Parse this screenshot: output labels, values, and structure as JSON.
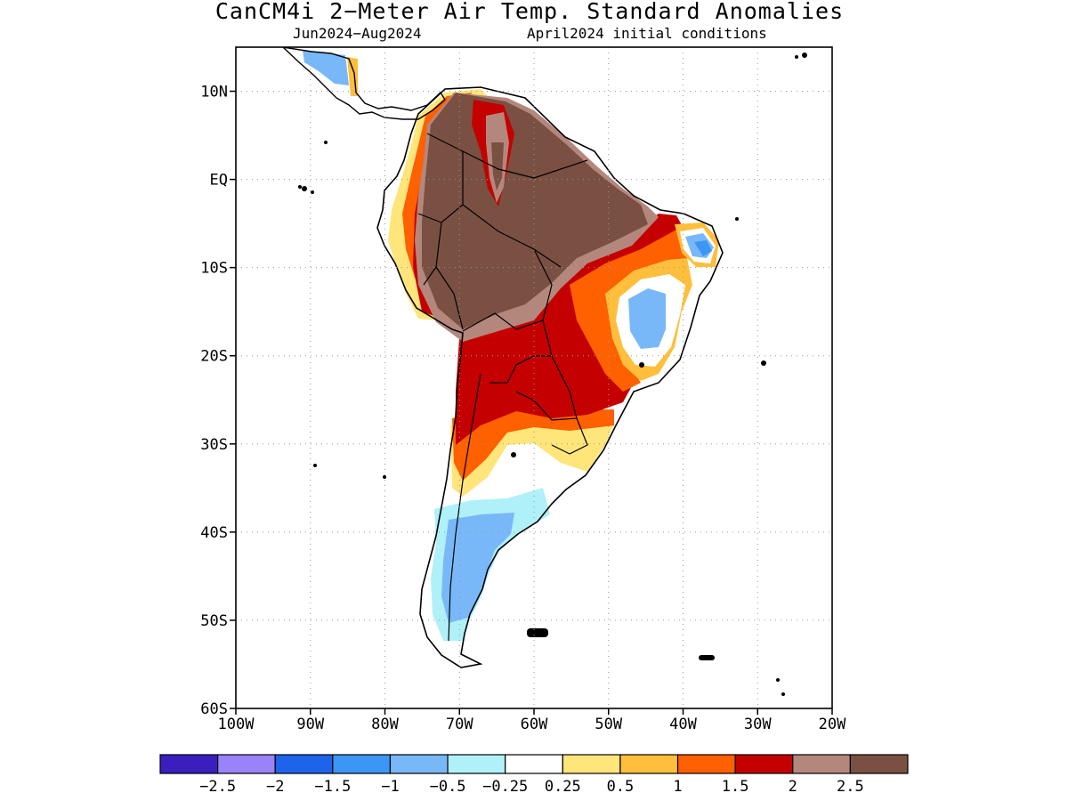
{
  "header": {
    "title": "CanCM4i 2−Meter Air Temp. Standard Anomalies",
    "subtitle_left": "Jun2024−Aug2024",
    "subtitle_right": "April2024 initial conditions"
  },
  "map": {
    "lon_range": [
      -100,
      -20
    ],
    "lat_range": [
      -60,
      15
    ],
    "lat_ticks": [
      {
        "value": 10,
        "label": "10N"
      },
      {
        "value": 0,
        "label": "EQ"
      },
      {
        "value": -10,
        "label": "10S"
      },
      {
        "value": -20,
        "label": "20S"
      },
      {
        "value": -30,
        "label": "30S"
      },
      {
        "value": -40,
        "label": "40S"
      },
      {
        "value": -50,
        "label": "50S"
      },
      {
        "value": -60,
        "label": "60S"
      }
    ],
    "lon_ticks": [
      {
        "value": -100,
        "label": "100W"
      },
      {
        "value": -90,
        "label": "90W"
      },
      {
        "value": -80,
        "label": "80W"
      },
      {
        "value": -70,
        "label": "70W"
      },
      {
        "value": -60,
        "label": "60W"
      },
      {
        "value": -50,
        "label": "50W"
      },
      {
        "value": -40,
        "label": "40W"
      },
      {
        "value": -30,
        "label": "30W"
      },
      {
        "value": -20,
        "label": "20W"
      }
    ],
    "grid": "dotted",
    "fill_colors": {
      "n2": "#ffe57a",
      "n3": "#ffbf3c",
      "n4": "#ff6000",
      "n5": "#c40000",
      "n6": "#b4877d",
      "n7": "#7a5042",
      "cold1": "#b0f0f8",
      "cold2": "#78b8f8",
      "cold3": "#3c96f5"
    }
  },
  "colorbar": {
    "colors": [
      "#3a1fbe",
      "#9a82fa",
      "#1e64eb",
      "#3c96f5",
      "#78b8f8",
      "#b0f0f8",
      "#ffffff",
      "#ffe57a",
      "#ffbf3c",
      "#ff6000",
      "#c40000",
      "#b4877d",
      "#7a5042"
    ],
    "labels": [
      "−2.5",
      "−2",
      "−1.5",
      "−1",
      "−0.5",
      "−0.25",
      "0.25",
      "0.5",
      "1",
      "1.5",
      "2",
      "2.5"
    ]
  }
}
